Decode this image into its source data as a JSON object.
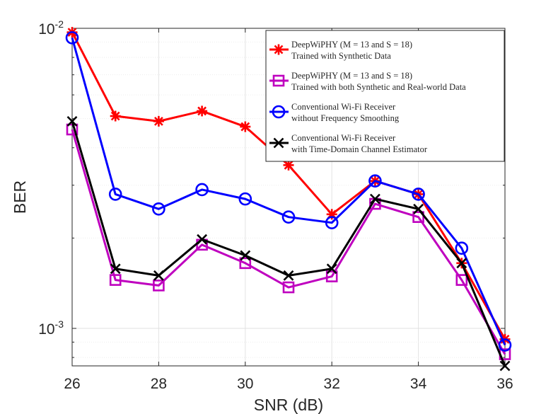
{
  "chart_data": {
    "type": "line",
    "xlabel": "SNR (dB)",
    "ylabel": "BER",
    "yscale": "log",
    "xlim": [
      26,
      36
    ],
    "ylim": [
      0.00075,
      0.01
    ],
    "grid": true,
    "legend_position": "top-right",
    "x": [
      26,
      27,
      28,
      29,
      30,
      31,
      32,
      33,
      34,
      35,
      36
    ],
    "x_ticks": [
      26,
      28,
      30,
      32,
      34,
      36
    ],
    "x_tick_labels": [
      "26",
      "28",
      "30",
      "32",
      "34",
      "36"
    ],
    "y_ticks": [
      {
        "value": 0.01,
        "base": "10",
        "exp": "-2"
      },
      {
        "value": 0.001,
        "base": "10",
        "exp": "-3"
      }
    ],
    "series": [
      {
        "name_line1": "DeepWiPHY (M = 13 and S = 18)",
        "name_line2": "Trained with Synthetic Data",
        "color": "#ff0000",
        "marker": "asterisk",
        "values": [
          0.0097,
          0.0051,
          0.0049,
          0.0053,
          0.0047,
          0.0035,
          0.0024,
          0.0031,
          0.0028,
          0.00165,
          0.00092
        ]
      },
      {
        "name_line1": "DeepWiPHY (M = 13 and S = 18)",
        "name_line2": "Trained with both Synthetic and Real-world Data",
        "color": "#bf00bf",
        "marker": "square",
        "values": [
          0.0046,
          0.00145,
          0.00139,
          0.0019,
          0.00165,
          0.00137,
          0.00149,
          0.0026,
          0.00235,
          0.00145,
          0.00082
        ]
      },
      {
        "name_line1": "Conventional Wi-Fi Receiver",
        "name_line2": "without Frequency Smoothing",
        "color": "#0000ff",
        "marker": "circle",
        "values": [
          0.0093,
          0.0028,
          0.0025,
          0.0029,
          0.0027,
          0.00235,
          0.00225,
          0.0031,
          0.0028,
          0.00185,
          0.00088
        ]
      },
      {
        "name_line1": "Conventional Wi-Fi Receiver",
        "name_line2": "with Time-Domain Channel Estimator",
        "color": "#000000",
        "marker": "x",
        "values": [
          0.0049,
          0.00158,
          0.0015,
          0.00198,
          0.00175,
          0.0015,
          0.00158,
          0.0027,
          0.0025,
          0.00165,
          0.00075
        ]
      }
    ]
  }
}
